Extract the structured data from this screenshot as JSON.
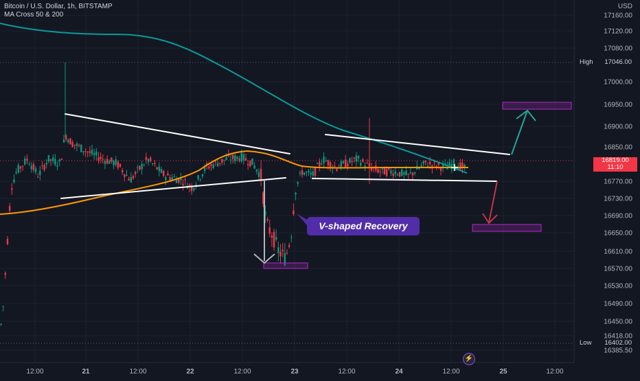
{
  "header": {
    "symbol": "Bitcoin / U.S. Dollar, 1h, BITSTAMP",
    "indicator": "MA Cross 50 & 200"
  },
  "price_axis": {
    "currency": "USD",
    "ticks": [
      "17160.00",
      "17120.00",
      "17080.00",
      "17000.00",
      "16950.00",
      "16900.00",
      "16850.00",
      "16770.00",
      "16730.00",
      "16690.00",
      "16650.00",
      "16610.00",
      "16570.00",
      "16530.00",
      "16490.00",
      "16450.00",
      "16418.00",
      "16385.50"
    ]
  },
  "time_axis": {
    "ticks": [
      "12:00",
      "21",
      "12:00",
      "22",
      "12:00",
      "23",
      "12:00",
      "24",
      "12:00",
      "25",
      "12:00"
    ]
  },
  "levels": {
    "high": {
      "label": "High",
      "value": "17046.00"
    },
    "low": {
      "label": "Low",
      "value": "16402.00"
    }
  },
  "current_price": {
    "value": "16819.00",
    "countdown": "11:10"
  },
  "annotation": {
    "text": "V-shaped Recovery"
  },
  "colors": {
    "background": "#131722",
    "up": "#089981",
    "down": "#f23645",
    "ma_fast": "#ff9800",
    "ma_slow": "#089c9c",
    "zone": "#9c27b0",
    "label_bg": "#512da8"
  }
}
